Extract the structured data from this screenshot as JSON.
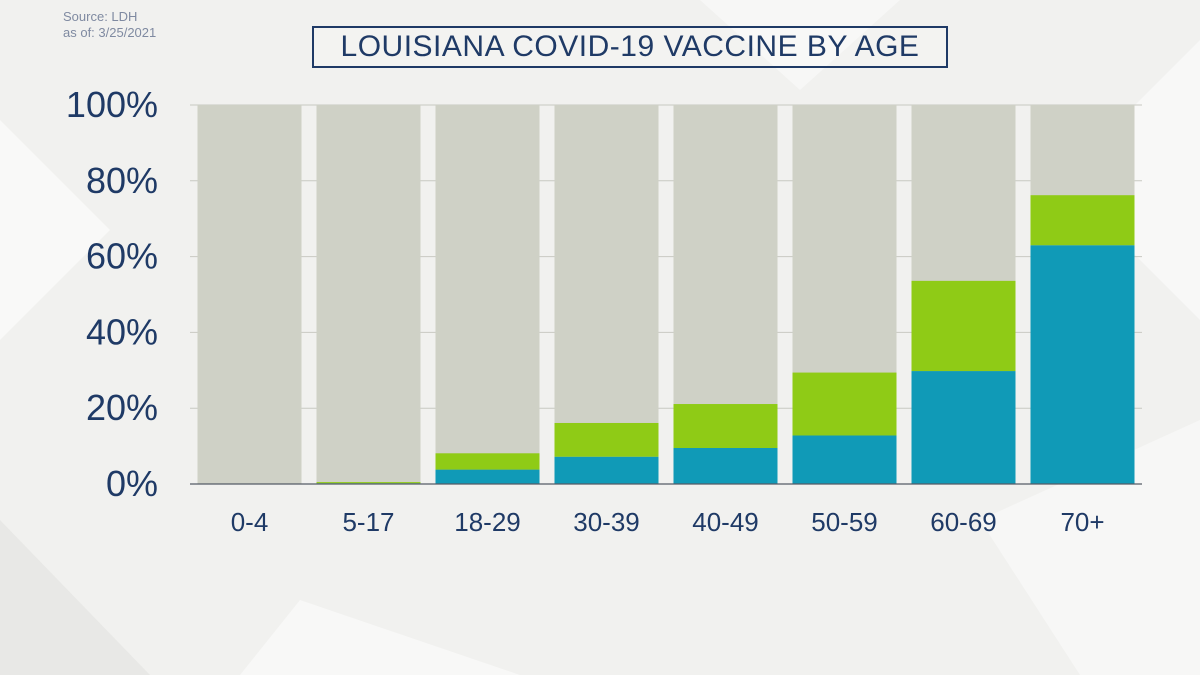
{
  "source": {
    "line1": "Source: LDH",
    "line2": "as of: 3/25/2021"
  },
  "colors": {
    "background_bar": "#cfd1c6",
    "fully_vaccinated": "#109ab7",
    "partially_vaccinated": "#8fcb16",
    "axis_text": "#1f3a66",
    "gridline": "#c8c9c2"
  },
  "chart_data": {
    "type": "bar",
    "stacked": true,
    "title": "LOUISIANA COVID-19 VACCINE BY AGE",
    "xlabel": "",
    "ylabel": "",
    "ylim": [
      0,
      100
    ],
    "y_ticks": [
      "0%",
      "20%",
      "40%",
      "60%",
      "80%",
      "100%"
    ],
    "grid": true,
    "legend": "none",
    "categories": [
      "0-4",
      "5-17",
      "18-29",
      "30-39",
      "40-49",
      "50-59",
      "60-69",
      "70+"
    ],
    "series": [
      {
        "values": [
          0,
          0.2,
          3.8,
          7.2,
          9.5,
          12.8,
          29.8,
          63
        ]
      },
      {
        "values": [
          0,
          0.3,
          4.3,
          8.9,
          11.6,
          16.6,
          23.8,
          13.2
        ]
      }
    ]
  }
}
